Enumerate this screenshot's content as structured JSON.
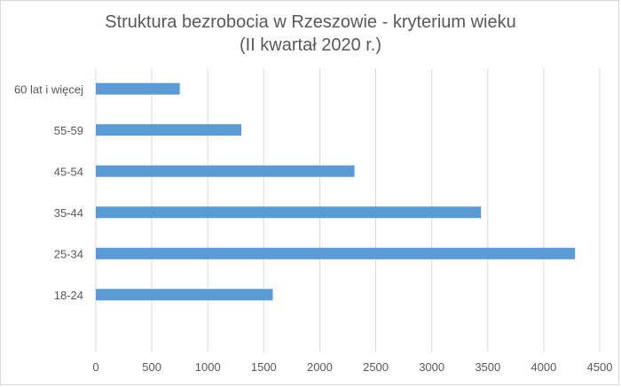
{
  "chart_data": {
    "type": "bar",
    "orientation": "horizontal",
    "title": "Struktura bezrobocia w Rzeszowie - kryterium wieku",
    "subtitle": "(II kwartał 2020 r.)",
    "categories": [
      "60 lat i więcej",
      "55-59",
      "45-54",
      "35-44",
      "25-34",
      "18-24"
    ],
    "series": [
      {
        "values": [
          750,
          1300,
          2310,
          3440,
          4280,
          1580
        ]
      }
    ],
    "xlim": [
      0,
      4500
    ],
    "xticks": [
      0,
      500,
      1000,
      1500,
      2000,
      2500,
      3000,
      3500,
      4000,
      4500
    ],
    "xlabel": "",
    "ylabel": "",
    "grid": true,
    "legend": "none",
    "bar_color": "#5b9bd5",
    "grid_color": "#d9d9d9"
  }
}
